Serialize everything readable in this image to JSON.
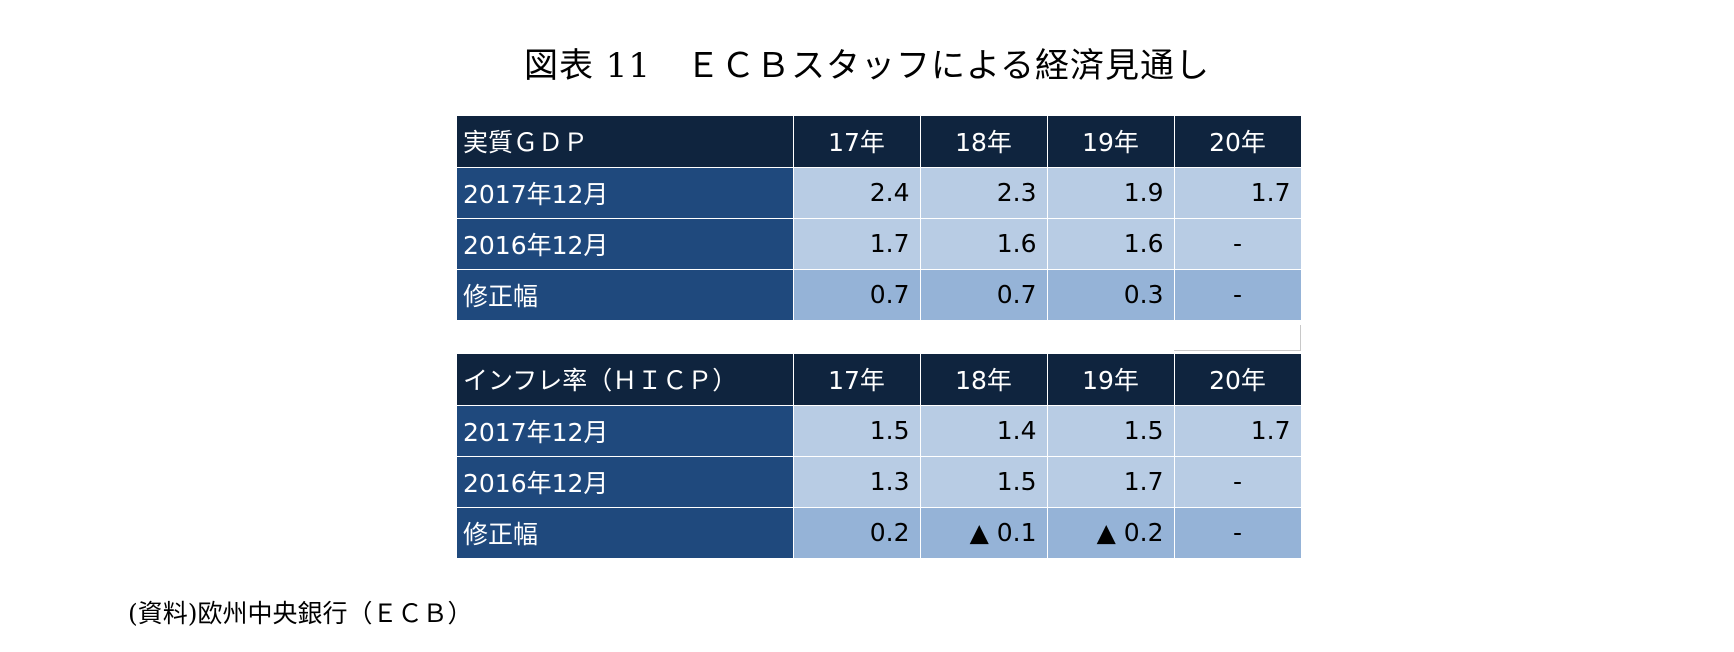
{
  "title": "図表 11　ＥＣＢスタッフによる経済見通し",
  "tables": [
    {
      "header": {
        "label": "実質ＧＤＰ",
        "years": [
          "17年",
          "18年",
          "19年",
          "20年"
        ]
      },
      "rows": [
        {
          "label": "2017年12月",
          "values": [
            "2.4",
            "2.3",
            "1.9",
            "1.7"
          ]
        },
        {
          "label": "2016年12月",
          "values": [
            "1.7",
            "1.6",
            "1.6",
            "-"
          ]
        },
        {
          "label": "修正幅",
          "values": [
            "0.7",
            "0.7",
            "0.3",
            "-"
          ]
        }
      ]
    },
    {
      "header": {
        "label": "インフレ率（ＨＩＣＰ）",
        "years": [
          "17年",
          "18年",
          "19年",
          "20年"
        ]
      },
      "rows": [
        {
          "label": "2017年12月",
          "values": [
            "1.5",
            "1.4",
            "1.5",
            "1.7"
          ]
        },
        {
          "label": "2016年12月",
          "values": [
            "1.3",
            "1.5",
            "1.7",
            "-"
          ]
        },
        {
          "label": "修正幅",
          "values": [
            "0.2",
            "▲ 0.1",
            "▲ 0.2",
            "-"
          ]
        }
      ]
    }
  ],
  "source": "(資料)欧州中央銀行（ＥＣＢ）",
  "colors": {
    "header_bg": "#0f243e",
    "rowlabel_bg": "#1f497d",
    "light_cell": "#b8cce4",
    "mid_cell": "#95b3d7"
  }
}
